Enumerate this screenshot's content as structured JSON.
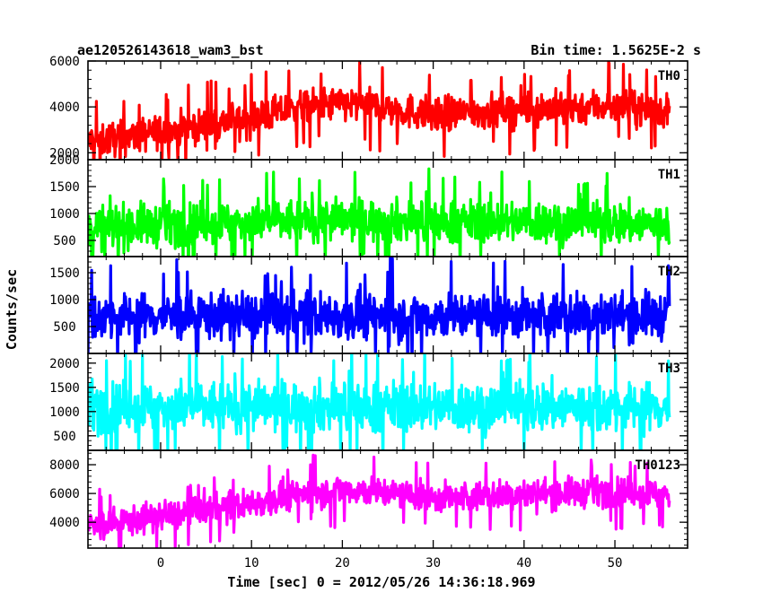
{
  "chart_data": {
    "type": "line",
    "title_left": "ae120526143618_wam3_bst",
    "title_right": "Bin time: 1.5625E-2 s",
    "xlabel": "Time [sec] 0 = 2012/05/26 14:36:18.969",
    "ylabel": "Counts/sec",
    "xlim": [
      -8,
      58
    ],
    "x_ticks": [
      0,
      10,
      20,
      30,
      40,
      50
    ],
    "x_tick_labels": [
      "0",
      "10",
      "20",
      "30",
      "40",
      "50"
    ],
    "data_range": [
      -8,
      56
    ],
    "bin_time": 0.015625,
    "grid": false,
    "panels": [
      {
        "name": "TH0",
        "color": "#ff0000",
        "ylim": [
          1700,
          6000
        ],
        "yticks": [
          2000,
          4000,
          6000
        ],
        "ytick_labels": [
          "2000",
          "4000",
          "6000"
        ],
        "trend": [
          [
            -8,
            2500
          ],
          [
            0,
            2900
          ],
          [
            10,
            3500
          ],
          [
            15,
            3950
          ],
          [
            20,
            4150
          ],
          [
            25,
            3950
          ],
          [
            30,
            3650
          ],
          [
            40,
            3900
          ],
          [
            50,
            4050
          ],
          [
            56,
            3800
          ]
        ],
        "spread": 800
      },
      {
        "name": "TH1",
        "color": "#00ff00",
        "ylim": [
          200,
          2000
        ],
        "yticks": [
          500,
          1000,
          1500,
          2000
        ],
        "ytick_labels": [
          "500",
          "1000",
          "1500",
          "2000"
        ],
        "trend": [
          [
            -8,
            750
          ],
          [
            10,
            850
          ],
          [
            20,
            880
          ],
          [
            30,
            850
          ],
          [
            40,
            850
          ],
          [
            56,
            800
          ]
        ],
        "spread": 420
      },
      {
        "name": "TH2",
        "color": "#0000ff",
        "ylim": [
          0,
          1800
        ],
        "yticks": [
          500,
          1000,
          1500
        ],
        "ytick_labels": [
          "500",
          "1000",
          "1500"
        ],
        "trend": [
          [
            -8,
            700
          ],
          [
            56,
            700
          ]
        ],
        "spread": 460
      },
      {
        "name": "TH3",
        "color": "#00ffff",
        "ylim": [
          200,
          2200
        ],
        "yticks": [
          500,
          1000,
          1500,
          2000
        ],
        "ytick_labels": [
          "500",
          "1000",
          "1500",
          "2000"
        ],
        "trend": [
          [
            -8,
            1100
          ],
          [
            56,
            1100
          ]
        ],
        "spread": 560
      },
      {
        "name": "TH0123",
        "color": "#ff00ff",
        "ylim": [
          2200,
          9000
        ],
        "yticks": [
          4000,
          6000,
          8000
        ],
        "ytick_labels": [
          "4000",
          "6000",
          "8000"
        ],
        "trend": [
          [
            -8,
            3700
          ],
          [
            0,
            4400
          ],
          [
            10,
            5300
          ],
          [
            15,
            5950
          ],
          [
            20,
            6300
          ],
          [
            25,
            6050
          ],
          [
            30,
            5650
          ],
          [
            40,
            5950
          ],
          [
            50,
            6150
          ],
          [
            56,
            5900
          ]
        ],
        "spread": 1100
      }
    ]
  }
}
